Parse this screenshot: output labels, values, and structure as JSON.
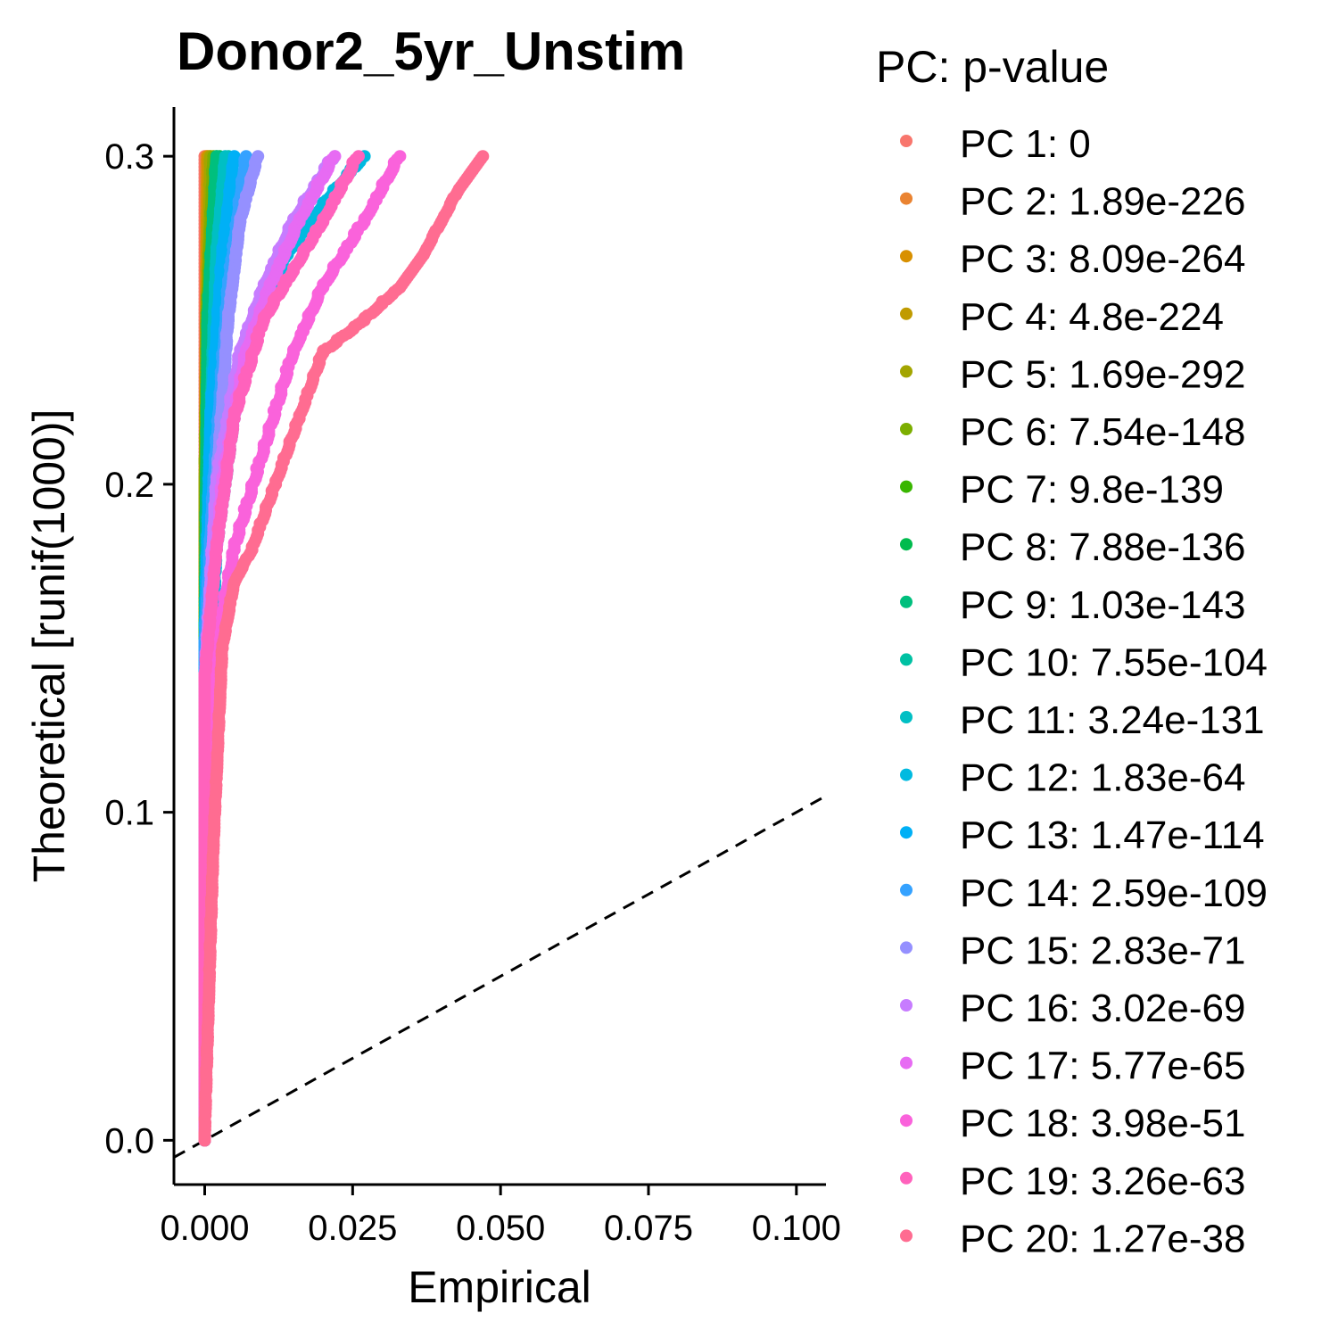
{
  "chart_data": {
    "type": "scatter",
    "title": "Donor2_5yr_Unstim",
    "xlabel": "Empirical",
    "ylabel": "Theoretical [runif(1000)]",
    "xlim": [
      -0.0052,
      0.105
    ],
    "ylim": [
      -0.0135,
      0.315
    ],
    "x_ticks": [
      0.0,
      0.025,
      0.05,
      0.075,
      0.1
    ],
    "x_tick_labels": [
      "0.000",
      "0.025",
      "0.050",
      "0.075",
      "0.100"
    ],
    "y_ticks": [
      0.0,
      0.1,
      0.2,
      0.3
    ],
    "y_tick_labels": [
      "0.0",
      "0.1",
      "0.2",
      "0.3"
    ],
    "grid": false,
    "reference_line": {
      "style": "dashed",
      "color": "#000000",
      "slope": 1,
      "intercept": 0
    },
    "legend": {
      "title": "PC: p-value",
      "placement": "right"
    },
    "series": [
      {
        "name": "PC 1: 0",
        "color": "#F8766D",
        "points": [
          [
            0.0,
            0.0
          ],
          [
            0.0,
            0.3
          ]
        ]
      },
      {
        "name": "PC 2: 1.89e-226",
        "color": "#EA8331",
        "points": [
          [
            0.0,
            0.0
          ],
          [
            0.0,
            0.15
          ],
          [
            0.0003,
            0.3
          ]
        ]
      },
      {
        "name": "PC 3: 8.09e-264",
        "color": "#D89000",
        "points": [
          [
            0.0,
            0.0
          ],
          [
            0.0,
            0.2
          ],
          [
            0.0005,
            0.3
          ]
        ]
      },
      {
        "name": "PC 4: 4.8e-224",
        "color": "#C09B00",
        "points": [
          [
            0.0,
            0.0
          ],
          [
            0.0,
            0.2
          ],
          [
            0.0008,
            0.3
          ]
        ]
      },
      {
        "name": "PC 5: 1.69e-292",
        "color": "#A3A500",
        "points": [
          [
            0.0,
            0.0
          ],
          [
            0.0,
            0.2
          ],
          [
            0.001,
            0.3
          ]
        ]
      },
      {
        "name": "PC 6: 7.54e-148",
        "color": "#7CAE00",
        "points": [
          [
            0.0,
            0.0
          ],
          [
            0.0,
            0.15
          ],
          [
            0.0003,
            0.25
          ],
          [
            0.0015,
            0.3
          ]
        ]
      },
      {
        "name": "PC 7: 9.8e-139",
        "color": "#39B600",
        "points": [
          [
            0.0,
            0.0
          ],
          [
            0.0,
            0.15
          ],
          [
            0.0005,
            0.25
          ],
          [
            0.002,
            0.3
          ]
        ]
      },
      {
        "name": "PC 8: 7.88e-136",
        "color": "#00BB4E",
        "points": [
          [
            0.0,
            0.0
          ],
          [
            0.0,
            0.15
          ],
          [
            0.0008,
            0.25
          ],
          [
            0.0025,
            0.3
          ]
        ]
      },
      {
        "name": "PC 9: 1.03e-143",
        "color": "#00BF7D",
        "points": [
          [
            0.0,
            0.0
          ],
          [
            0.0,
            0.15
          ],
          [
            0.0005,
            0.25
          ],
          [
            0.002,
            0.3
          ]
        ]
      },
      {
        "name": "PC 10: 7.55e-104",
        "color": "#00C1A3",
        "points": [
          [
            0.0,
            0.0
          ],
          [
            0.0,
            0.15
          ],
          [
            0.001,
            0.22
          ],
          [
            0.0025,
            0.27
          ],
          [
            0.004,
            0.3
          ]
        ]
      },
      {
        "name": "PC 11: 3.24e-131",
        "color": "#00BFC4",
        "points": [
          [
            0.0,
            0.0
          ],
          [
            0.0,
            0.15
          ],
          [
            0.001,
            0.22
          ],
          [
            0.002,
            0.27
          ],
          [
            0.0035,
            0.3
          ]
        ]
      },
      {
        "name": "PC 12: 1.83e-64",
        "color": "#00BAE0",
        "points": [
          [
            0.0,
            0.0
          ],
          [
            0.0,
            0.1
          ],
          [
            0.002,
            0.18
          ],
          [
            0.005,
            0.22
          ],
          [
            0.009,
            0.25
          ],
          [
            0.014,
            0.27
          ],
          [
            0.02,
            0.285
          ],
          [
            0.027,
            0.3
          ]
        ]
      },
      {
        "name": "PC 13: 1.47e-114",
        "color": "#00B0F6",
        "points": [
          [
            0.0,
            0.0
          ],
          [
            0.0,
            0.15
          ],
          [
            0.001,
            0.22
          ],
          [
            0.003,
            0.27
          ],
          [
            0.005,
            0.3
          ]
        ]
      },
      {
        "name": "PC 14: 2.59e-109",
        "color": "#35A2FF",
        "points": [
          [
            0.0,
            0.0
          ],
          [
            0.0,
            0.15
          ],
          [
            0.0015,
            0.2
          ],
          [
            0.004,
            0.26
          ],
          [
            0.007,
            0.3
          ]
        ]
      },
      {
        "name": "PC 15: 2.83e-71",
        "color": "#9590FF",
        "points": [
          [
            0.0,
            0.0
          ],
          [
            0.0,
            0.14
          ],
          [
            0.002,
            0.2
          ],
          [
            0.004,
            0.25
          ],
          [
            0.006,
            0.28
          ],
          [
            0.009,
            0.3
          ]
        ]
      },
      {
        "name": "PC 16: 3.02e-69",
        "color": "#C77CFF",
        "points": [
          [
            0.0,
            0.0
          ],
          [
            0.0,
            0.14
          ],
          [
            0.002,
            0.2
          ],
          [
            0.006,
            0.24
          ],
          [
            0.01,
            0.26
          ],
          [
            0.015,
            0.28
          ],
          [
            0.022,
            0.3
          ]
        ]
      },
      {
        "name": "PC 17: 5.77e-65",
        "color": "#E76BF3",
        "points": [
          [
            0.0,
            0.0
          ],
          [
            0.0,
            0.14
          ],
          [
            0.003,
            0.2
          ],
          [
            0.007,
            0.24
          ],
          [
            0.011,
            0.26
          ],
          [
            0.016,
            0.28
          ],
          [
            0.022,
            0.3
          ]
        ]
      },
      {
        "name": "PC 18: 3.98e-51",
        "color": "#FA62DB",
        "points": [
          [
            0.0,
            0.0
          ],
          [
            0.001,
            0.14
          ],
          [
            0.005,
            0.18
          ],
          [
            0.01,
            0.21
          ],
          [
            0.015,
            0.24
          ],
          [
            0.02,
            0.26
          ],
          [
            0.027,
            0.28
          ],
          [
            0.033,
            0.3
          ]
        ]
      },
      {
        "name": "PC 19: 3.26e-63",
        "color": "#FF62BC",
        "points": [
          [
            0.0,
            0.0
          ],
          [
            0.0,
            0.14
          ],
          [
            0.002,
            0.18
          ],
          [
            0.005,
            0.22
          ],
          [
            0.01,
            0.25
          ],
          [
            0.015,
            0.265
          ],
          [
            0.02,
            0.28
          ],
          [
            0.026,
            0.3
          ]
        ]
      },
      {
        "name": "PC 20: 1.27e-38",
        "color": "#FF6C91",
        "points": [
          [
            0.0,
            0.0
          ],
          [
            0.0015,
            0.09
          ],
          [
            0.003,
            0.15
          ],
          [
            0.005,
            0.17
          ],
          [
            0.008,
            0.18
          ],
          [
            0.012,
            0.2
          ],
          [
            0.016,
            0.22
          ],
          [
            0.02,
            0.24
          ],
          [
            0.027,
            0.25
          ],
          [
            0.033,
            0.26
          ],
          [
            0.037,
            0.27
          ],
          [
            0.04,
            0.28
          ],
          [
            0.043,
            0.29
          ],
          [
            0.047,
            0.3
          ]
        ]
      }
    ]
  }
}
